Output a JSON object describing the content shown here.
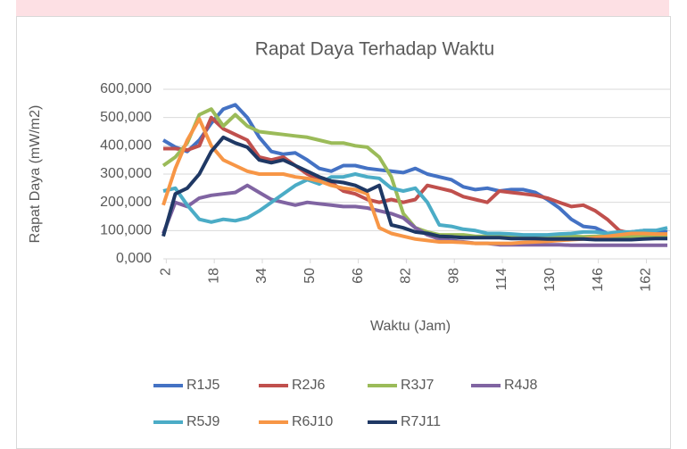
{
  "chart_data": {
    "type": "line",
    "title": "Rapat Daya Terhadap Waktu",
    "x_label": "Waktu (Jam)",
    "y_label": "Rapat Daya (mW/m2)",
    "x": [
      1,
      5,
      9,
      13,
      17,
      21,
      25,
      29,
      33,
      37,
      41,
      45,
      49,
      53,
      57,
      61,
      65,
      69,
      73,
      77,
      81,
      85,
      89,
      93,
      97,
      101,
      105,
      109,
      113,
      117,
      121,
      125,
      129,
      133,
      137,
      141,
      145,
      149,
      153,
      157,
      161,
      165,
      169
    ],
    "xlim": [
      1,
      169
    ],
    "xticks": [
      2,
      18,
      34,
      50,
      66,
      82,
      98,
      114,
      130,
      146,
      162
    ],
    "ylim": [
      0,
      600
    ],
    "yticks": [
      {
        "value": 0,
        "label": "0,000"
      },
      {
        "value": 100,
        "label": "100,000"
      },
      {
        "value": 200,
        "label": "200,000"
      },
      {
        "value": 300,
        "label": "300,000"
      },
      {
        "value": 400,
        "label": "400,000"
      },
      {
        "value": 500,
        "label": "500,000"
      },
      {
        "value": 600,
        "label": "600,000"
      }
    ],
    "grid": true,
    "legend": "bottom",
    "series": [
      {
        "name": "R1J5",
        "color": "#4472c4",
        "values": [
          420,
          395,
          380,
          420,
          480,
          530,
          545,
          500,
          430,
          380,
          370,
          375,
          350,
          320,
          310,
          330,
          330,
          320,
          315,
          310,
          305,
          320,
          300,
          290,
          280,
          255,
          245,
          250,
          240,
          245,
          245,
          235,
          210,
          180,
          140,
          115,
          110,
          90,
          90,
          95,
          100,
          100,
          95
        ]
      },
      {
        "name": "R2J6",
        "color": "#c0504d",
        "values": [
          390,
          390,
          385,
          400,
          500,
          460,
          440,
          420,
          360,
          350,
          360,
          330,
          300,
          280,
          270,
          240,
          230,
          210,
          200,
          210,
          200,
          210,
          260,
          250,
          240,
          220,
          210,
          200,
          240,
          235,
          230,
          225,
          215,
          200,
          185,
          190,
          170,
          140,
          100,
          90,
          80,
          80,
          80
        ]
      },
      {
        "name": "R3J7",
        "color": "#9bbb59",
        "values": [
          330,
          360,
          410,
          510,
          530,
          470,
          510,
          470,
          450,
          445,
          440,
          435,
          430,
          420,
          410,
          410,
          400,
          395,
          360,
          290,
          160,
          110,
          95,
          85,
          85,
          85,
          80,
          80,
          80,
          80,
          80,
          78,
          78,
          80,
          80,
          78,
          80,
          80,
          80,
          80,
          80,
          78,
          78
        ]
      },
      {
        "name": "R4J8",
        "color": "#8064a2",
        "values": [
          90,
          200,
          185,
          215,
          225,
          230,
          235,
          260,
          235,
          210,
          200,
          190,
          200,
          195,
          190,
          185,
          185,
          180,
          170,
          160,
          145,
          110,
          85,
          70,
          65,
          60,
          55,
          55,
          50,
          50,
          50,
          50,
          50,
          50,
          48,
          48,
          48,
          48,
          48,
          48,
          48,
          48,
          48
        ]
      },
      {
        "name": "R5J9",
        "color": "#4bacc6",
        "values": [
          240,
          250,
          190,
          140,
          130,
          140,
          135,
          145,
          170,
          200,
          230,
          260,
          280,
          265,
          290,
          290,
          300,
          290,
          285,
          250,
          240,
          250,
          200,
          120,
          115,
          105,
          100,
          90,
          90,
          88,
          85,
          85,
          85,
          88,
          90,
          95,
          95,
          90,
          95,
          95,
          100,
          100,
          110
        ]
      },
      {
        "name": "R6J10",
        "color": "#f79646",
        "values": [
          190,
          320,
          420,
          495,
          400,
          350,
          330,
          310,
          300,
          300,
          300,
          290,
          285,
          275,
          260,
          250,
          245,
          230,
          110,
          90,
          80,
          70,
          65,
          60,
          60,
          58,
          55,
          55,
          55,
          55,
          58,
          60,
          62,
          65,
          68,
          70,
          75,
          80,
          85,
          90,
          90,
          88,
          88
        ]
      },
      {
        "name": "R7J11",
        "color": "#1f3864",
        "values": [
          80,
          230,
          250,
          300,
          380,
          430,
          410,
          395,
          350,
          340,
          350,
          330,
          310,
          290,
          275,
          270,
          260,
          240,
          260,
          120,
          110,
          95,
          90,
          80,
          78,
          75,
          75,
          75,
          75,
          72,
          72,
          72,
          70,
          70,
          70,
          70,
          68,
          68,
          68,
          68,
          70,
          72,
          72
        ]
      }
    ]
  }
}
